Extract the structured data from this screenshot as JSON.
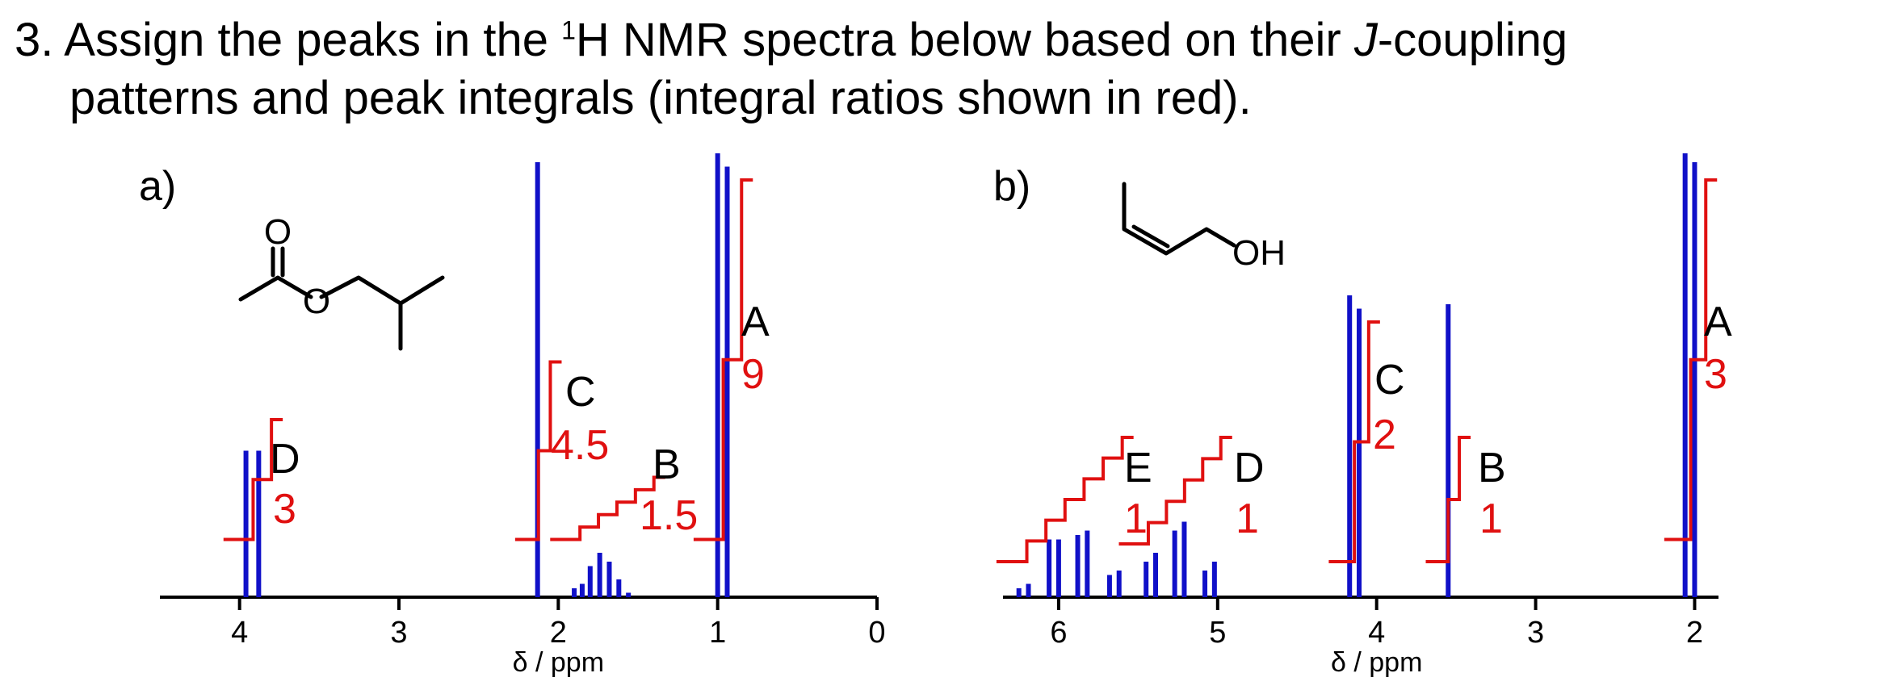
{
  "question": {
    "number": "3.",
    "text_a": "Assign the peaks in the ",
    "sup": "1",
    "text_b": "H NMR spectra below based on their ",
    "italic": "J",
    "text_c": "-coupling",
    "line2": "patterns and peak integrals (integral ratios shown in red)."
  },
  "colors": {
    "peak": "#1010c8",
    "integral": "#e01010",
    "axis": "#000000"
  },
  "chart_data": [
    {
      "type": "nmr_spectrum",
      "panel_label": "a)",
      "molecule_labels": [
        "O",
        "O"
      ],
      "xlabel": "δ / ppm",
      "xlim": [
        4.5,
        0
      ],
      "ticks": [
        4,
        3,
        2,
        1,
        0
      ],
      "tick_labels": [
        "4",
        "3",
        "2",
        "1",
        "0"
      ],
      "peaks": [
        {
          "ppm": 3.96,
          "height": 0.33
        },
        {
          "ppm": 3.88,
          "height": 0.33
        },
        {
          "ppm": 2.13,
          "height": 0.98
        },
        {
          "ppm": 1.9,
          "height": 0.02
        },
        {
          "ppm": 1.85,
          "height": 0.03
        },
        {
          "ppm": 1.8,
          "height": 0.07
        },
        {
          "ppm": 1.74,
          "height": 0.1
        },
        {
          "ppm": 1.68,
          "height": 0.08
        },
        {
          "ppm": 1.62,
          "height": 0.04
        },
        {
          "ppm": 1.56,
          "height": 0.01
        },
        {
          "ppm": 1.0,
          "height": 1.0
        },
        {
          "ppm": 0.94,
          "height": 0.97
        }
      ],
      "signals": [
        {
          "letter": "D",
          "integral": "3",
          "from": 4.03,
          "to": 3.8,
          "y0": 0.13,
          "y1": 0.4
        },
        {
          "letter": "C",
          "integral": "4.5",
          "from": 2.2,
          "to": 2.05,
          "y0": 0.13,
          "y1": 0.53
        },
        {
          "letter": "B",
          "integral": "1.5",
          "from": 1.98,
          "to": 1.4,
          "y0": 0.13,
          "y1": 0.27
        },
        {
          "letter": "A",
          "integral": "9",
          "from": 1.08,
          "to": 0.85,
          "y0": 0.13,
          "y1": 0.94
        }
      ]
    },
    {
      "type": "nmr_spectrum",
      "panel_label": "b)",
      "molecule_labels": [
        "OH"
      ],
      "xlabel": "δ / ppm",
      "xlim": [
        6.35,
        1.85
      ],
      "ticks": [
        6,
        5,
        4,
        3,
        2
      ],
      "tick_labels": [
        "6",
        "5",
        "4",
        "3",
        "2"
      ],
      "peaks": [
        {
          "ppm": 6.25,
          "height": 0.02
        },
        {
          "ppm": 6.19,
          "height": 0.03
        },
        {
          "ppm": 6.06,
          "height": 0.13
        },
        {
          "ppm": 6.0,
          "height": 0.13
        },
        {
          "ppm": 5.88,
          "height": 0.14
        },
        {
          "ppm": 5.82,
          "height": 0.15
        },
        {
          "ppm": 5.68,
          "height": 0.05
        },
        {
          "ppm": 5.62,
          "height": 0.06
        },
        {
          "ppm": 5.45,
          "height": 0.08
        },
        {
          "ppm": 5.39,
          "height": 0.1
        },
        {
          "ppm": 5.27,
          "height": 0.15
        },
        {
          "ppm": 5.21,
          "height": 0.17
        },
        {
          "ppm": 5.08,
          "height": 0.06
        },
        {
          "ppm": 5.02,
          "height": 0.08
        },
        {
          "ppm": 4.17,
          "height": 0.68
        },
        {
          "ppm": 4.11,
          "height": 0.65
        },
        {
          "ppm": 3.55,
          "height": 0.66
        },
        {
          "ppm": 2.06,
          "height": 1.0
        },
        {
          "ppm": 2.0,
          "height": 0.98
        }
      ],
      "signals": [
        {
          "letter": "E",
          "integral": "1",
          "from": 6.32,
          "to": 5.6,
          "y0": 0.08,
          "y1": 0.36
        },
        {
          "letter": "D",
          "integral": "1",
          "from": 5.55,
          "to": 4.98,
          "y0": 0.12,
          "y1": 0.36
        },
        {
          "letter": "C",
          "integral": "2",
          "from": 4.23,
          "to": 4.05,
          "y0": 0.08,
          "y1": 0.62
        },
        {
          "letter": "B",
          "integral": "1",
          "from": 3.62,
          "to": 3.48,
          "y0": 0.08,
          "y1": 0.36
        },
        {
          "letter": "A",
          "integral": "3",
          "from": 2.12,
          "to": 1.93,
          "y0": 0.13,
          "y1": 0.94
        }
      ]
    }
  ]
}
